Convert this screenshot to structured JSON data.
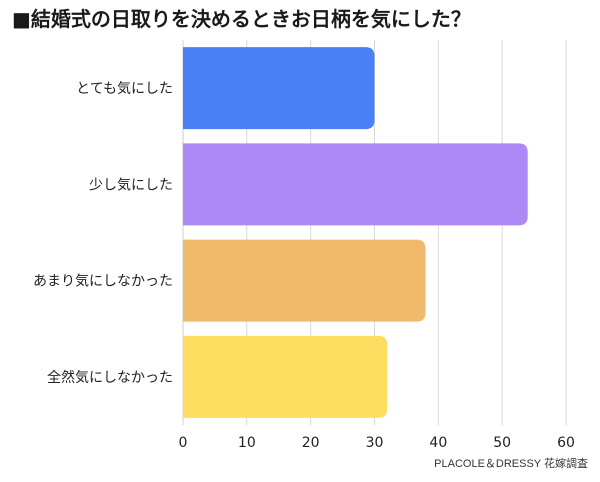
{
  "chart_data": {
    "type": "bar",
    "orientation": "horizontal",
    "title": "■結婚式の日取りを決めるときお日柄を気にした？",
    "source": "PLACOLE＆DRESSY 花嫁調査",
    "categories": [
      "とても気にした",
      "少し気にした",
      "あまり気にしなかった",
      "全然気にしなかった"
    ],
    "values": [
      30,
      54,
      38,
      32
    ],
    "colors": [
      "#4a80f5",
      "#ad89f5",
      "#f0b96c",
      "#ffdd5e"
    ],
    "xlim": [
      0,
      60
    ],
    "xticks": [
      "0",
      "10",
      "20",
      "30",
      "40",
      "50",
      "60"
    ],
    "grid": true,
    "legend": "none"
  }
}
